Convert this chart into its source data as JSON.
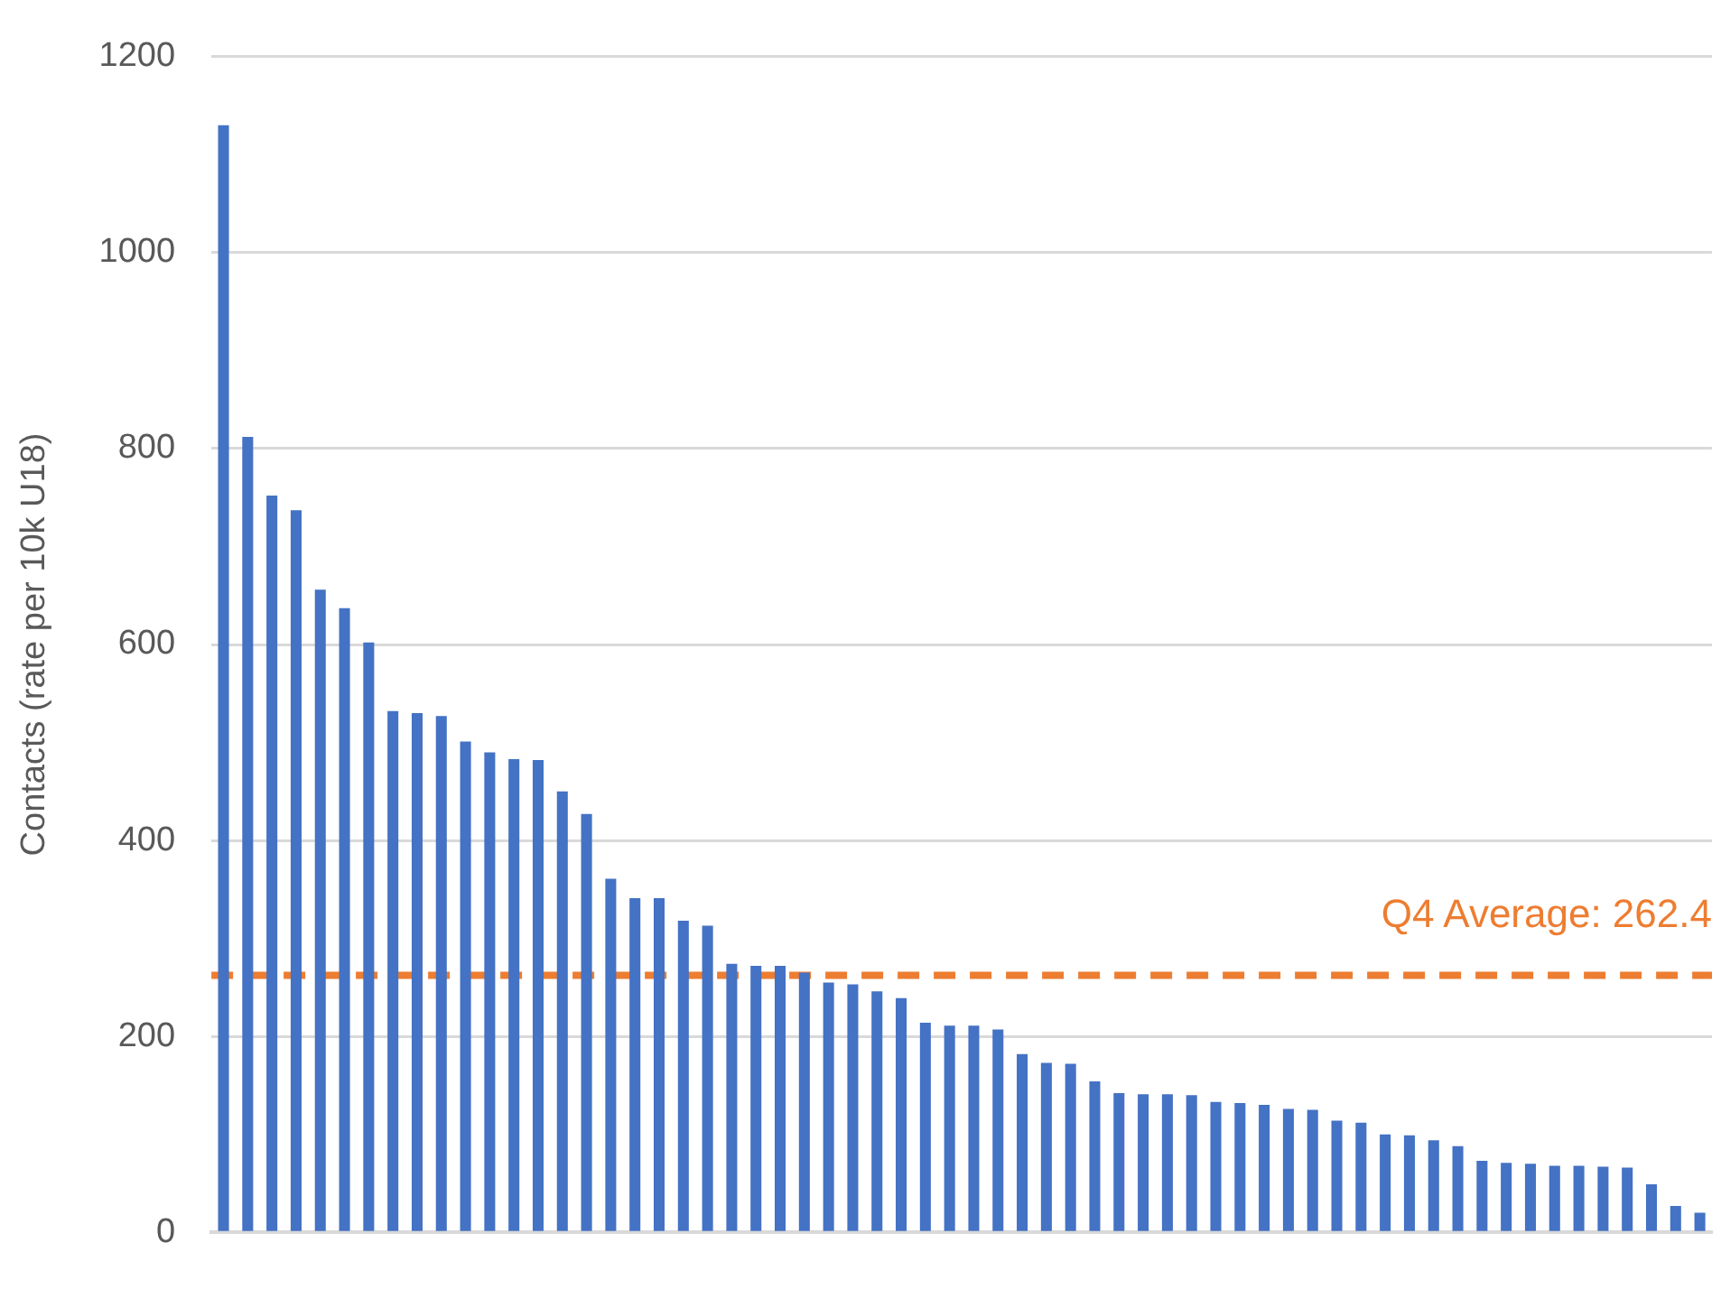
{
  "chart_data": {
    "type": "bar",
    "ylabel": "Contacts (rate per 10k U18)",
    "categories": [
      null,
      null,
      null,
      null,
      null,
      null,
      null,
      null,
      null,
      null,
      null,
      null,
      null,
      null,
      null,
      null,
      null,
      null,
      null,
      null,
      null,
      null,
      null,
      null,
      null,
      null,
      null,
      null,
      null,
      null,
      null,
      null,
      null,
      null,
      null,
      null,
      null,
      null,
      null,
      null,
      null,
      null,
      null,
      null,
      null,
      null,
      null,
      null,
      null,
      null,
      null,
      null,
      null,
      null,
      null,
      null,
      null,
      null,
      null,
      null,
      null,
      null
    ],
    "values": [
      1130,
      812,
      752,
      737,
      656,
      637,
      602,
      532,
      530,
      527,
      501,
      490,
      483,
      482,
      450,
      427,
      361,
      341,
      341,
      318,
      313,
      274,
      272,
      272,
      265,
      255,
      253,
      246,
      239,
      214,
      211,
      211,
      207,
      182,
      173,
      172,
      154,
      142,
      141,
      141,
      140,
      133,
      132,
      130,
      126,
      125,
      114,
      112,
      100,
      99,
      94,
      88,
      73,
      71,
      70,
      68,
      68,
      67,
      66,
      49,
      27,
      20
    ],
    "color": "#4472c4",
    "ylim": [
      0,
      1200
    ],
    "yticks": [
      0,
      200,
      400,
      600,
      800,
      1000,
      1200
    ],
    "grid": "y",
    "ref_lines": [
      {
        "axis": "y",
        "value": 262.4,
        "label": "Q4 Average: 262.4",
        "color": "#ed7d31",
        "line_style": "dashed"
      }
    ]
  }
}
